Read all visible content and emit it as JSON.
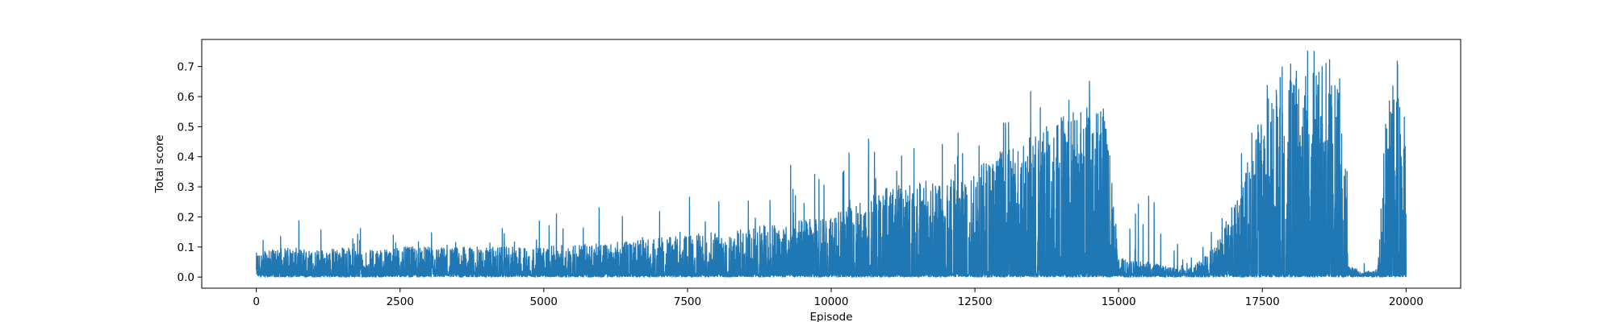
{
  "chart_data": {
    "type": "line",
    "title": "",
    "xlabel": "Episode",
    "ylabel": "Total score",
    "xlim": [
      -950,
      20950
    ],
    "ylim": [
      -0.037,
      0.79
    ],
    "xticks": [
      0,
      2500,
      5000,
      7500,
      10000,
      12500,
      15000,
      17500,
      20000
    ],
    "xtick_labels": [
      "0",
      "2500",
      "5000",
      "7500",
      "10000",
      "12500",
      "15000",
      "17500",
      "20000"
    ],
    "yticks": [
      0.0,
      0.1,
      0.2,
      0.3,
      0.4,
      0.5,
      0.6,
      0.7
    ],
    "ytick_labels": [
      "0.0",
      "0.1",
      "0.2",
      "0.3",
      "0.4",
      "0.5",
      "0.6",
      "0.7"
    ],
    "grid": false,
    "legend": "none",
    "line_color": "#1f77b4",
    "series": [
      {
        "description": "Per-episode total score over ~20000 episodes; envelope of the noisy signal (floor ~0.0)",
        "envelope_x": [
          0,
          250,
          500,
          1000,
          1500,
          2000,
          2500,
          3000,
          3500,
          4000,
          4500,
          5000,
          5500,
          6000,
          6500,
          7000,
          7500,
          8000,
          8500,
          9000,
          9500,
          10000,
          10500,
          11000,
          11500,
          12000,
          12500,
          13000,
          13500,
          14000,
          14300,
          14600,
          14800,
          15000,
          15500,
          16000,
          16300,
          16500,
          16700,
          17000,
          17300,
          17600,
          17800,
          18000,
          18300,
          18600,
          18900,
          19000,
          19200,
          19500,
          19650,
          19750,
          19850,
          19950,
          20000
        ],
        "envelope_max": [
          0.17,
          0.15,
          0.21,
          0.17,
          0.19,
          0.17,
          0.28,
          0.24,
          0.2,
          0.17,
          0.18,
          0.23,
          0.2,
          0.25,
          0.24,
          0.31,
          0.39,
          0.28,
          0.34,
          0.38,
          0.37,
          0.38,
          0.56,
          0.46,
          0.45,
          0.46,
          0.55,
          0.59,
          0.62,
          0.7,
          0.71,
          0.66,
          0.57,
          0.12,
          0.31,
          0.12,
          0.1,
          0.23,
          0.25,
          0.37,
          0.47,
          0.69,
          0.73,
          0.75,
          0.76,
          0.74,
          0.7,
          0.22,
          0.05,
          0.03,
          0.56,
          0.74,
          0.72,
          0.69,
          0.69
        ],
        "envelope_typical_top": [
          0.08,
          0.09,
          0.1,
          0.09,
          0.1,
          0.09,
          0.1,
          0.1,
          0.1,
          0.1,
          0.1,
          0.1,
          0.11,
          0.11,
          0.12,
          0.13,
          0.14,
          0.15,
          0.16,
          0.18,
          0.19,
          0.2,
          0.26,
          0.3,
          0.32,
          0.34,
          0.38,
          0.42,
          0.48,
          0.55,
          0.6,
          0.58,
          0.52,
          0.06,
          0.05,
          0.03,
          0.03,
          0.08,
          0.1,
          0.25,
          0.4,
          0.6,
          0.68,
          0.7,
          0.72,
          0.7,
          0.66,
          0.04,
          0.02,
          0.02,
          0.45,
          0.66,
          0.64,
          0.6,
          0.6
        ]
      }
    ]
  }
}
